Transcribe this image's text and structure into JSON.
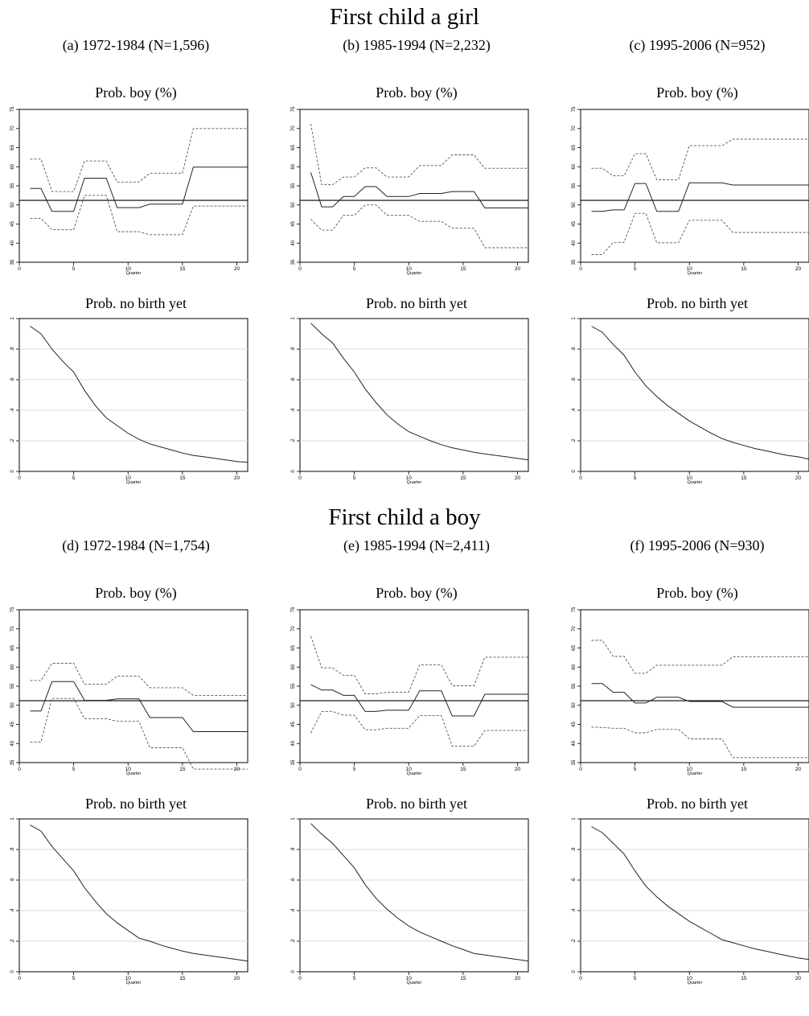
{
  "sections": [
    {
      "title": "First child a girl"
    },
    {
      "title": "First child a boy"
    }
  ],
  "chart_data": [
    {
      "type": "line",
      "panel_title": "(a) 1972-1984 (N=1,596)",
      "boy": {
        "title": "Prob. boy (%)",
        "xlabel": "Quarter",
        "xlim": [
          0,
          21
        ],
        "ylim": [
          35,
          75
        ],
        "xticks": [
          0,
          5,
          10,
          15,
          20
        ],
        "yticks": [
          35,
          40,
          45,
          50,
          55,
          60,
          65,
          70,
          75
        ],
        "hline": 51.2,
        "x": [
          1,
          2,
          3,
          4,
          5,
          6,
          7,
          8,
          9,
          10,
          11,
          12,
          13,
          14,
          15,
          16,
          17,
          18,
          19,
          20,
          21
        ],
        "estimate": [
          54.3,
          54.3,
          48.3,
          48.3,
          48.3,
          57,
          57,
          57,
          49.3,
          49.3,
          49.3,
          50.2,
          50.2,
          50.2,
          50.2,
          59.9,
          59.9,
          59.9,
          59.9,
          59.9,
          59.9
        ],
        "upper": [
          62,
          62,
          53.5,
          53.5,
          53.5,
          61.5,
          61.5,
          61.5,
          56,
          56,
          56,
          58.3,
          58.3,
          58.3,
          58.3,
          70,
          70,
          70,
          70,
          70,
          70
        ],
        "lower": [
          46.5,
          46.5,
          43.5,
          43.5,
          43.5,
          52.5,
          52.5,
          52.5,
          43,
          43,
          43,
          42.2,
          42.2,
          42.2,
          42.2,
          49.7,
          49.7,
          49.7,
          49.7,
          49.7,
          49.7
        ]
      },
      "surv": {
        "title": "Prob. no birth yet",
        "xlabel": "Quarter",
        "xlim": [
          0,
          21
        ],
        "ylim": [
          0,
          1
        ],
        "xticks": [
          0,
          5,
          10,
          15,
          20
        ],
        "yticks": [
          0,
          0.2,
          0.4,
          0.6,
          0.8,
          1
        ],
        "ytick_labels": [
          "0",
          ".2",
          ".4",
          ".6",
          ".8",
          "1"
        ],
        "x": [
          1,
          2,
          3,
          4,
          5,
          6,
          7,
          8,
          9,
          10,
          11,
          12,
          13,
          14,
          15,
          16,
          17,
          18,
          19,
          20,
          21
        ],
        "values": [
          0.95,
          0.9,
          0.8,
          0.72,
          0.65,
          0.53,
          0.43,
          0.35,
          0.3,
          0.25,
          0.21,
          0.18,
          0.16,
          0.14,
          0.12,
          0.105,
          0.095,
          0.085,
          0.075,
          0.065,
          0.06
        ]
      }
    },
    {
      "type": "line",
      "panel_title": "(b) 1985-1994 (N=2,232)",
      "boy": {
        "title": "Prob. boy (%)",
        "xlabel": "Quarter",
        "xlim": [
          0,
          21
        ],
        "ylim": [
          35,
          75
        ],
        "xticks": [
          0,
          5,
          10,
          15,
          20
        ],
        "yticks": [
          35,
          40,
          45,
          50,
          55,
          60,
          65,
          70,
          75
        ],
        "hline": 51.2,
        "x": [
          1,
          2,
          3,
          4,
          5,
          6,
          7,
          8,
          9,
          10,
          11,
          12,
          13,
          14,
          15,
          16,
          17,
          18,
          19,
          20,
          21
        ],
        "estimate": [
          58.5,
          49.5,
          49.5,
          52.2,
          52.2,
          54.8,
          54.8,
          52.2,
          52.2,
          52.2,
          53,
          53,
          53,
          53.5,
          53.5,
          53.5,
          49.2,
          49.2,
          49.2,
          49.2,
          49.2
        ],
        "upper": [
          71.2,
          55.3,
          55.3,
          57.3,
          57.3,
          59.7,
          59.7,
          57.3,
          57.3,
          57.3,
          60.3,
          60.3,
          60.3,
          63.1,
          63.1,
          63.1,
          59.6,
          59.6,
          59.6,
          59.6,
          59.6
        ],
        "lower": [
          46.3,
          43.4,
          43.4,
          47.3,
          47.3,
          50,
          50,
          47.3,
          47.3,
          47.3,
          45.7,
          45.7,
          45.7,
          43.9,
          43.9,
          43.9,
          38.8,
          38.8,
          38.8,
          38.8,
          38.8
        ]
      },
      "surv": {
        "title": "Prob. no birth yet",
        "xlabel": "Quarter",
        "xlim": [
          0,
          21
        ],
        "ylim": [
          0,
          1
        ],
        "xticks": [
          0,
          5,
          10,
          15,
          20
        ],
        "yticks": [
          0,
          0.2,
          0.4,
          0.6,
          0.8,
          1
        ],
        "ytick_labels": [
          "0",
          ".2",
          ".4",
          ".6",
          ".8",
          "1"
        ],
        "x": [
          1,
          2,
          3,
          4,
          5,
          6,
          7,
          8,
          9,
          10,
          11,
          12,
          13,
          14,
          15,
          16,
          17,
          18,
          19,
          20,
          21
        ],
        "values": [
          0.97,
          0.9,
          0.84,
          0.74,
          0.65,
          0.54,
          0.45,
          0.37,
          0.31,
          0.26,
          0.23,
          0.2,
          0.175,
          0.155,
          0.14,
          0.125,
          0.115,
          0.105,
          0.095,
          0.085,
          0.075
        ]
      }
    },
    {
      "type": "line",
      "panel_title": "(c) 1995-2006 (N=952)",
      "boy": {
        "title": "Prob. boy (%)",
        "xlabel": "Quarter",
        "xlim": [
          0,
          21
        ],
        "ylim": [
          35,
          75
        ],
        "xticks": [
          0,
          5,
          10,
          15,
          20
        ],
        "yticks": [
          35,
          40,
          45,
          50,
          55,
          60,
          65,
          70,
          75
        ],
        "hline": 51.2,
        "x": [
          1,
          2,
          3,
          4,
          5,
          6,
          7,
          8,
          9,
          10,
          11,
          12,
          13,
          14,
          15,
          16,
          17,
          18,
          19,
          20,
          21
        ],
        "estimate": [
          48.3,
          48.3,
          48.7,
          48.7,
          55.6,
          55.6,
          48.3,
          48.3,
          48.3,
          55.8,
          55.8,
          55.8,
          55.8,
          55.2,
          55.2,
          55.2,
          55.2,
          55.2,
          55.2,
          55.2,
          55.2
        ],
        "upper": [
          59.6,
          59.6,
          57.6,
          57.6,
          63.4,
          63.4,
          56.6,
          56.6,
          56.6,
          65.5,
          65.5,
          65.5,
          65.5,
          67.2,
          67.2,
          67.2,
          67.2,
          67.2,
          67.2,
          67.2,
          67.2
        ],
        "lower": [
          37,
          37,
          40.2,
          40.2,
          47.8,
          47.8,
          40.1,
          40.1,
          40.1,
          46,
          46,
          46,
          46,
          42.8,
          42.8,
          42.8,
          42.8,
          42.8,
          42.8,
          42.8,
          42.8
        ]
      },
      "surv": {
        "title": "Prob. no birth yet",
        "xlabel": "Quarter",
        "xlim": [
          0,
          21
        ],
        "ylim": [
          0,
          1
        ],
        "xticks": [
          0,
          5,
          10,
          15,
          20
        ],
        "yticks": [
          0,
          0.2,
          0.4,
          0.6,
          0.8,
          1
        ],
        "ytick_labels": [
          "0",
          ".2",
          ".4",
          ".6",
          ".8",
          "1"
        ],
        "x": [
          1,
          2,
          3,
          4,
          5,
          6,
          7,
          8,
          9,
          10,
          11,
          12,
          13,
          14,
          15,
          16,
          17,
          18,
          19,
          20,
          21
        ],
        "values": [
          0.95,
          0.91,
          0.83,
          0.76,
          0.65,
          0.56,
          0.49,
          0.43,
          0.38,
          0.33,
          0.29,
          0.25,
          0.215,
          0.19,
          0.17,
          0.15,
          0.135,
          0.12,
          0.105,
          0.095,
          0.08
        ]
      }
    },
    {
      "type": "line",
      "panel_title": "(d) 1972-1984 (N=1,754)",
      "boy": {
        "title": "Prob. boy (%)",
        "xlabel": "Quarter",
        "xlim": [
          0,
          21
        ],
        "ylim": [
          35,
          75
        ],
        "xticks": [
          0,
          5,
          10,
          15,
          20
        ],
        "yticks": [
          35,
          40,
          45,
          50,
          55,
          60,
          65,
          70,
          75
        ],
        "hline": 51.2,
        "x": [
          1,
          2,
          3,
          4,
          5,
          6,
          7,
          8,
          9,
          10,
          11,
          12,
          13,
          14,
          15,
          16,
          17,
          18,
          19,
          20,
          21
        ],
        "estimate": [
          48.5,
          48.5,
          56.2,
          56.2,
          56.2,
          51.3,
          51.3,
          51.3,
          51.7,
          51.7,
          51.7,
          46.8,
          46.8,
          46.8,
          46.8,
          43.1,
          43.1,
          43.1,
          43.1,
          43.1,
          43.1
        ],
        "upper": [
          56.5,
          56.5,
          61,
          61,
          61,
          55.5,
          55.5,
          55.5,
          57.6,
          57.6,
          57.6,
          54.6,
          54.6,
          54.6,
          54.6,
          52.6,
          52.6,
          52.6,
          52.6,
          52.6,
          52.6
        ],
        "lower": [
          40.4,
          40.4,
          51.8,
          51.8,
          51.8,
          46.5,
          46.5,
          46.5,
          45.8,
          45.8,
          45.8,
          38.9,
          38.9,
          38.9,
          38.9,
          33.3,
          33.3,
          33.3,
          33.3,
          33.3,
          33.3
        ]
      },
      "surv": {
        "title": "Prob. no birth yet",
        "xlabel": "Quarter",
        "xlim": [
          0,
          21
        ],
        "ylim": [
          0,
          1
        ],
        "xticks": [
          0,
          5,
          10,
          15,
          20
        ],
        "yticks": [
          0,
          0.2,
          0.4,
          0.6,
          0.8,
          1
        ],
        "ytick_labels": [
          "0",
          ".2",
          ".4",
          ".6",
          ".8",
          "1"
        ],
        "x": [
          1,
          2,
          3,
          4,
          5,
          6,
          7,
          8,
          9,
          10,
          11,
          12,
          13,
          14,
          15,
          16,
          17,
          18,
          19,
          20,
          21
        ],
        "values": [
          0.96,
          0.92,
          0.82,
          0.74,
          0.66,
          0.55,
          0.46,
          0.38,
          0.32,
          0.27,
          0.22,
          0.2,
          0.175,
          0.155,
          0.135,
          0.12,
          0.11,
          0.1,
          0.09,
          0.08,
          0.07
        ]
      }
    },
    {
      "type": "line",
      "panel_title": "(e) 1985-1994 (N=2,411)",
      "boy": {
        "title": "Prob. boy (%)",
        "xlabel": "Quarter",
        "xlim": [
          0,
          21
        ],
        "ylim": [
          35,
          75
        ],
        "xticks": [
          0,
          5,
          10,
          15,
          20
        ],
        "yticks": [
          35,
          40,
          45,
          50,
          55,
          60,
          65,
          70,
          75
        ],
        "hline": 51.2,
        "x": [
          1,
          2,
          3,
          4,
          5,
          6,
          7,
          8,
          9,
          10,
          11,
          12,
          13,
          14,
          15,
          16,
          17,
          18,
          19,
          20,
          21
        ],
        "estimate": [
          55.4,
          54,
          54,
          52.6,
          52.6,
          48.4,
          48.4,
          48.7,
          48.7,
          48.7,
          53.8,
          53.8,
          53.8,
          47.2,
          47.2,
          47.2,
          52.9,
          52.9,
          52.9,
          52.9,
          52.9
        ],
        "upper": [
          68.1,
          59.8,
          59.8,
          57.8,
          57.8,
          53,
          53,
          53.4,
          53.4,
          53.4,
          60.6,
          60.6,
          60.6,
          55.1,
          55.1,
          55.1,
          62.6,
          62.6,
          62.6,
          62.6,
          62.6
        ],
        "lower": [
          42.7,
          48.4,
          48.4,
          47.4,
          47.4,
          43.6,
          43.6,
          44,
          44,
          44,
          47.3,
          47.3,
          47.3,
          39.3,
          39.3,
          39.3,
          43.4,
          43.4,
          43.4,
          43.4,
          43.4
        ]
      },
      "surv": {
        "title": "Prob. no birth yet",
        "xlabel": "Quarter",
        "xlim": [
          0,
          21
        ],
        "ylim": [
          0,
          1
        ],
        "xticks": [
          0,
          5,
          10,
          15,
          20
        ],
        "yticks": [
          0,
          0.2,
          0.4,
          0.6,
          0.8,
          1
        ],
        "ytick_labels": [
          "0",
          ".2",
          ".4",
          ".6",
          ".8",
          "1"
        ],
        "x": [
          1,
          2,
          3,
          4,
          5,
          6,
          7,
          8,
          9,
          10,
          11,
          12,
          13,
          14,
          15,
          16,
          17,
          18,
          19,
          20,
          21
        ],
        "values": [
          0.97,
          0.9,
          0.84,
          0.76,
          0.68,
          0.57,
          0.48,
          0.41,
          0.35,
          0.3,
          0.26,
          0.23,
          0.2,
          0.17,
          0.145,
          0.12,
          0.11,
          0.1,
          0.09,
          0.08,
          0.07
        ]
      }
    },
    {
      "type": "line",
      "panel_title": "(f) 1995-2006 (N=930)",
      "boy": {
        "title": "Prob. boy (%)",
        "xlabel": "Quarter",
        "xlim": [
          0,
          21
        ],
        "ylim": [
          35,
          75
        ],
        "xticks": [
          0,
          5,
          10,
          15,
          20
        ],
        "yticks": [
          35,
          40,
          45,
          50,
          55,
          60,
          65,
          70,
          75
        ],
        "hline": 51.2,
        "x": [
          1,
          2,
          3,
          4,
          5,
          6,
          7,
          8,
          9,
          10,
          11,
          12,
          13,
          14,
          15,
          16,
          17,
          18,
          19,
          20,
          21
        ],
        "estimate": [
          55.7,
          55.7,
          53.4,
          53.4,
          50.6,
          50.6,
          52.1,
          52.1,
          52.1,
          51,
          51,
          51,
          51,
          49.5,
          49.5,
          49.5,
          49.5,
          49.5,
          49.5,
          49.5,
          49.5
        ],
        "upper": [
          67,
          67,
          62.8,
          62.8,
          58.4,
          58.4,
          60.5,
          60.5,
          60.5,
          60.5,
          60.5,
          60.5,
          60.5,
          62.7,
          62.7,
          62.7,
          62.7,
          62.7,
          62.7,
          62.7,
          62.7
        ],
        "lower": [
          44.3,
          44.2,
          44,
          44,
          42.8,
          42.8,
          43.7,
          43.7,
          43.7,
          41.2,
          41.2,
          41.2,
          41.2,
          36.3,
          36.3,
          36.3,
          36.3,
          36.3,
          36.3,
          36.3,
          36.3
        ]
      },
      "surv": {
        "title": "Prob. no birth yet",
        "xlabel": "Quarter",
        "xlim": [
          0,
          21
        ],
        "ylim": [
          0,
          1
        ],
        "xticks": [
          0,
          5,
          10,
          15,
          20
        ],
        "yticks": [
          0,
          0.2,
          0.4,
          0.6,
          0.8,
          1
        ],
        "ytick_labels": [
          "0",
          ".2",
          ".4",
          ".6",
          ".8",
          "1"
        ],
        "x": [
          1,
          2,
          3,
          4,
          5,
          6,
          7,
          8,
          9,
          10,
          11,
          12,
          13,
          14,
          15,
          16,
          17,
          18,
          19,
          20,
          21
        ],
        "values": [
          0.95,
          0.91,
          0.84,
          0.77,
          0.66,
          0.56,
          0.49,
          0.43,
          0.38,
          0.33,
          0.29,
          0.25,
          0.21,
          0.19,
          0.17,
          0.15,
          0.135,
          0.12,
          0.105,
          0.09,
          0.08
        ]
      }
    }
  ]
}
